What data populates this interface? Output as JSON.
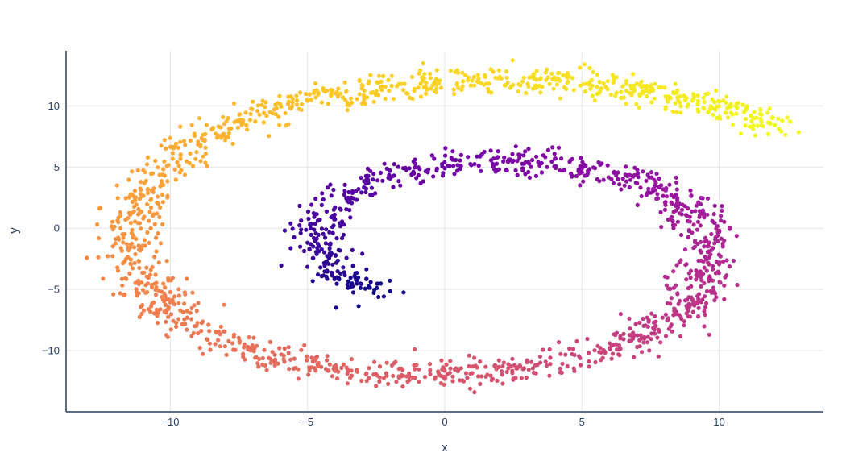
{
  "chart_data": {
    "type": "scatter",
    "title": "",
    "xlabel": "x",
    "ylabel": "y",
    "xlim": [
      -13.8,
      13.8
    ],
    "ylim": [
      -15,
      14.5
    ],
    "x_ticks": [
      -10,
      -5,
      0,
      5,
      10
    ],
    "y_ticks": [
      -10,
      -5,
      0,
      5,
      10
    ],
    "x_tick_labels": [
      "−10",
      "−5",
      "0",
      "5",
      "10"
    ],
    "y_tick_labels": [
      "−10",
      "−5",
      "0",
      "5",
      "10"
    ],
    "grid": true,
    "legend": "none",
    "colorscale": "plasma",
    "colorscale_stops": [
      "#0d0887",
      "#46039f",
      "#7201a8",
      "#9c179e",
      "#bd3786",
      "#d8576b",
      "#ed7953",
      "#fb9f3a",
      "#fdca26",
      "#f0f921"
    ],
    "series": [
      {
        "description": "points along a two-turn spiral, color varies with position along the spiral",
        "points": [
          {
            "x": -2.3,
            "y": -5.1,
            "t": 0.0
          },
          {
            "x": -3.4,
            "y": -4.6,
            "t": 0.03
          },
          {
            "x": -4.3,
            "y": -3.2,
            "t": 0.06
          },
          {
            "x": -4.5,
            "y": -1.0,
            "t": 0.09
          },
          {
            "x": -4.4,
            "y": 1.0,
            "t": 0.12
          },
          {
            "x": -3.6,
            "y": 3.0,
            "t": 0.15
          },
          {
            "x": -2.3,
            "y": 4.3,
            "t": 0.18
          },
          {
            "x": -0.3,
            "y": 5.2,
            "t": 0.21
          },
          {
            "x": 2.0,
            "y": 5.6,
            "t": 0.24
          },
          {
            "x": 4.5,
            "y": 5.1,
            "t": 0.27
          },
          {
            "x": 6.5,
            "y": 4.1,
            "t": 0.3
          },
          {
            "x": 8.2,
            "y": 2.7,
            "t": 0.33
          },
          {
            "x": 9.2,
            "y": 0.6,
            "t": 0.36
          },
          {
            "x": 9.6,
            "y": -2.0,
            "t": 0.39
          },
          {
            "x": 9.4,
            "y": -4.7,
            "t": 0.42
          },
          {
            "x": 8.4,
            "y": -7.3,
            "t": 0.45
          },
          {
            "x": 6.6,
            "y": -9.5,
            "t": 0.48
          },
          {
            "x": 4.3,
            "y": -11.0,
            "t": 0.51
          },
          {
            "x": 1.5,
            "y": -11.8,
            "t": 0.54
          },
          {
            "x": -1.3,
            "y": -12.0,
            "t": 0.57
          },
          {
            "x": -4.2,
            "y": -11.5,
            "t": 0.6
          },
          {
            "x": -6.7,
            "y": -10.4,
            "t": 0.63
          },
          {
            "x": -8.8,
            "y": -8.4,
            "t": 0.66
          },
          {
            "x": -10.4,
            "y": -5.8,
            "t": 0.69
          },
          {
            "x": -11.3,
            "y": -2.8,
            "t": 0.72
          },
          {
            "x": -11.5,
            "y": 0.3,
            "t": 0.75
          },
          {
            "x": -10.9,
            "y": 3.4,
            "t": 0.78
          },
          {
            "x": -9.5,
            "y": 6.3,
            "t": 0.81
          },
          {
            "x": -7.5,
            "y": 8.7,
            "t": 0.84
          },
          {
            "x": -5.0,
            "y": 10.5,
            "t": 0.87
          },
          {
            "x": -2.0,
            "y": 11.6,
            "t": 0.9
          },
          {
            "x": 1.2,
            "y": 12.1,
            "t": 0.92
          },
          {
            "x": 4.3,
            "y": 12.0,
            "t": 0.94
          },
          {
            "x": 7.3,
            "y": 11.3,
            "t": 0.96
          },
          {
            "x": 10.0,
            "y": 10.0,
            "t": 0.98
          },
          {
            "x": 12.2,
            "y": 8.3,
            "t": 1.0
          }
        ],
        "approx_point_count": 2000,
        "spread": 0.55
      }
    ]
  }
}
